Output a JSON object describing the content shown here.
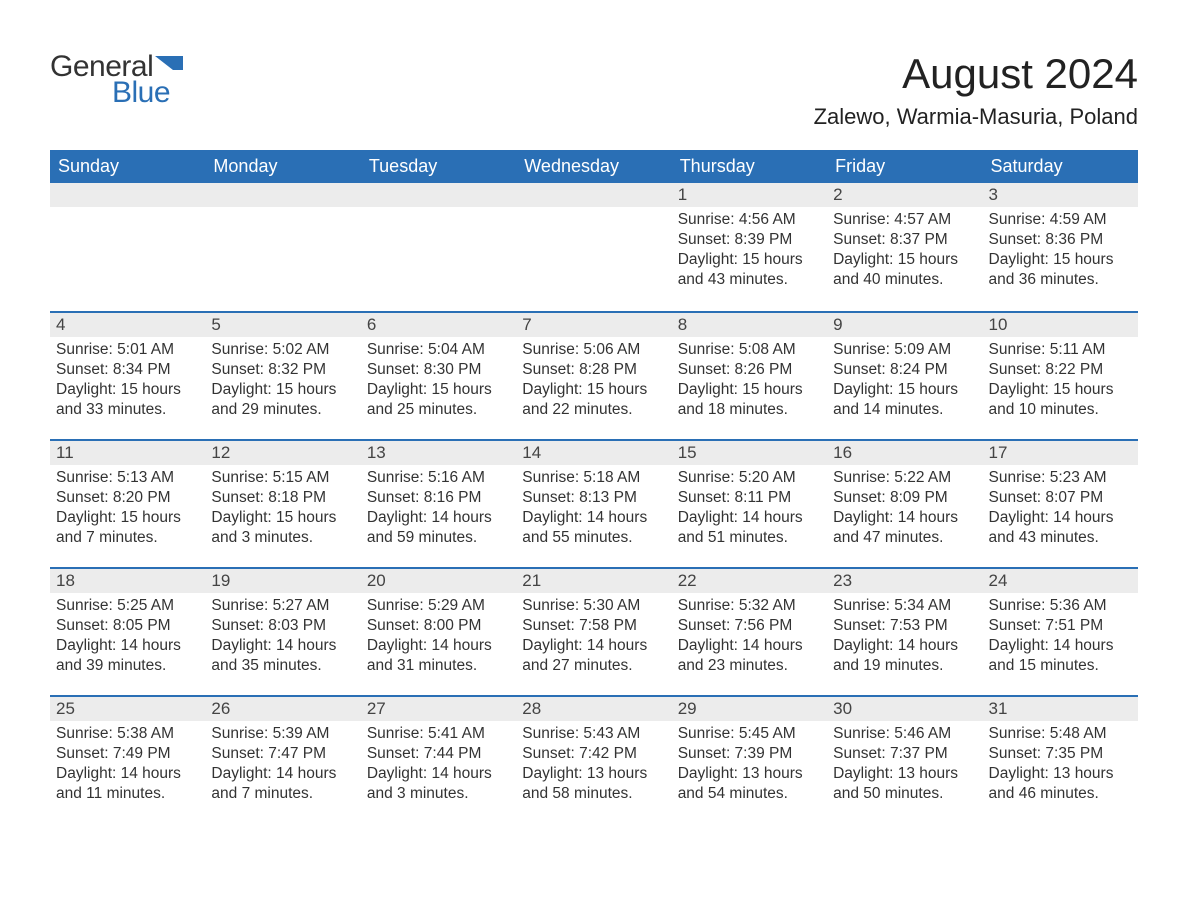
{
  "logo": {
    "text_general": "General",
    "text_blue": "Blue",
    "flag_color": "#2a6fb5"
  },
  "header": {
    "month_title": "August 2024",
    "location": "Zalewo, Warmia-Masuria, Poland"
  },
  "colors": {
    "header_bg": "#2a6fb5",
    "header_text": "#ffffff",
    "daynum_bg": "#ececec",
    "row_border": "#2a6fb5",
    "body_text": "#333333",
    "background": "#ffffff"
  },
  "fonts": {
    "title_size_pt": 32,
    "location_size_pt": 17,
    "header_cell_size_pt": 14,
    "daynum_size_pt": 13,
    "body_size_pt": 12
  },
  "calendar": {
    "day_names": [
      "Sunday",
      "Monday",
      "Tuesday",
      "Wednesday",
      "Thursday",
      "Friday",
      "Saturday"
    ],
    "weeks": [
      [
        null,
        null,
        null,
        null,
        {
          "n": "1",
          "sunrise": "Sunrise: 4:56 AM",
          "sunset": "Sunset: 8:39 PM",
          "daylight": "Daylight: 15 hours and 43 minutes."
        },
        {
          "n": "2",
          "sunrise": "Sunrise: 4:57 AM",
          "sunset": "Sunset: 8:37 PM",
          "daylight": "Daylight: 15 hours and 40 minutes."
        },
        {
          "n": "3",
          "sunrise": "Sunrise: 4:59 AM",
          "sunset": "Sunset: 8:36 PM",
          "daylight": "Daylight: 15 hours and 36 minutes."
        }
      ],
      [
        {
          "n": "4",
          "sunrise": "Sunrise: 5:01 AM",
          "sunset": "Sunset: 8:34 PM",
          "daylight": "Daylight: 15 hours and 33 minutes."
        },
        {
          "n": "5",
          "sunrise": "Sunrise: 5:02 AM",
          "sunset": "Sunset: 8:32 PM",
          "daylight": "Daylight: 15 hours and 29 minutes."
        },
        {
          "n": "6",
          "sunrise": "Sunrise: 5:04 AM",
          "sunset": "Sunset: 8:30 PM",
          "daylight": "Daylight: 15 hours and 25 minutes."
        },
        {
          "n": "7",
          "sunrise": "Sunrise: 5:06 AM",
          "sunset": "Sunset: 8:28 PM",
          "daylight": "Daylight: 15 hours and 22 minutes."
        },
        {
          "n": "8",
          "sunrise": "Sunrise: 5:08 AM",
          "sunset": "Sunset: 8:26 PM",
          "daylight": "Daylight: 15 hours and 18 minutes."
        },
        {
          "n": "9",
          "sunrise": "Sunrise: 5:09 AM",
          "sunset": "Sunset: 8:24 PM",
          "daylight": "Daylight: 15 hours and 14 minutes."
        },
        {
          "n": "10",
          "sunrise": "Sunrise: 5:11 AM",
          "sunset": "Sunset: 8:22 PM",
          "daylight": "Daylight: 15 hours and 10 minutes."
        }
      ],
      [
        {
          "n": "11",
          "sunrise": "Sunrise: 5:13 AM",
          "sunset": "Sunset: 8:20 PM",
          "daylight": "Daylight: 15 hours and 7 minutes."
        },
        {
          "n": "12",
          "sunrise": "Sunrise: 5:15 AM",
          "sunset": "Sunset: 8:18 PM",
          "daylight": "Daylight: 15 hours and 3 minutes."
        },
        {
          "n": "13",
          "sunrise": "Sunrise: 5:16 AM",
          "sunset": "Sunset: 8:16 PM",
          "daylight": "Daylight: 14 hours and 59 minutes."
        },
        {
          "n": "14",
          "sunrise": "Sunrise: 5:18 AM",
          "sunset": "Sunset: 8:13 PM",
          "daylight": "Daylight: 14 hours and 55 minutes."
        },
        {
          "n": "15",
          "sunrise": "Sunrise: 5:20 AM",
          "sunset": "Sunset: 8:11 PM",
          "daylight": "Daylight: 14 hours and 51 minutes."
        },
        {
          "n": "16",
          "sunrise": "Sunrise: 5:22 AM",
          "sunset": "Sunset: 8:09 PM",
          "daylight": "Daylight: 14 hours and 47 minutes."
        },
        {
          "n": "17",
          "sunrise": "Sunrise: 5:23 AM",
          "sunset": "Sunset: 8:07 PM",
          "daylight": "Daylight: 14 hours and 43 minutes."
        }
      ],
      [
        {
          "n": "18",
          "sunrise": "Sunrise: 5:25 AM",
          "sunset": "Sunset: 8:05 PM",
          "daylight": "Daylight: 14 hours and 39 minutes."
        },
        {
          "n": "19",
          "sunrise": "Sunrise: 5:27 AM",
          "sunset": "Sunset: 8:03 PM",
          "daylight": "Daylight: 14 hours and 35 minutes."
        },
        {
          "n": "20",
          "sunrise": "Sunrise: 5:29 AM",
          "sunset": "Sunset: 8:00 PM",
          "daylight": "Daylight: 14 hours and 31 minutes."
        },
        {
          "n": "21",
          "sunrise": "Sunrise: 5:30 AM",
          "sunset": "Sunset: 7:58 PM",
          "daylight": "Daylight: 14 hours and 27 minutes."
        },
        {
          "n": "22",
          "sunrise": "Sunrise: 5:32 AM",
          "sunset": "Sunset: 7:56 PM",
          "daylight": "Daylight: 14 hours and 23 minutes."
        },
        {
          "n": "23",
          "sunrise": "Sunrise: 5:34 AM",
          "sunset": "Sunset: 7:53 PM",
          "daylight": "Daylight: 14 hours and 19 minutes."
        },
        {
          "n": "24",
          "sunrise": "Sunrise: 5:36 AM",
          "sunset": "Sunset: 7:51 PM",
          "daylight": "Daylight: 14 hours and 15 minutes."
        }
      ],
      [
        {
          "n": "25",
          "sunrise": "Sunrise: 5:38 AM",
          "sunset": "Sunset: 7:49 PM",
          "daylight": "Daylight: 14 hours and 11 minutes."
        },
        {
          "n": "26",
          "sunrise": "Sunrise: 5:39 AM",
          "sunset": "Sunset: 7:47 PM",
          "daylight": "Daylight: 14 hours and 7 minutes."
        },
        {
          "n": "27",
          "sunrise": "Sunrise: 5:41 AM",
          "sunset": "Sunset: 7:44 PM",
          "daylight": "Daylight: 14 hours and 3 minutes."
        },
        {
          "n": "28",
          "sunrise": "Sunrise: 5:43 AM",
          "sunset": "Sunset: 7:42 PM",
          "daylight": "Daylight: 13 hours and 58 minutes."
        },
        {
          "n": "29",
          "sunrise": "Sunrise: 5:45 AM",
          "sunset": "Sunset: 7:39 PM",
          "daylight": "Daylight: 13 hours and 54 minutes."
        },
        {
          "n": "30",
          "sunrise": "Sunrise: 5:46 AM",
          "sunset": "Sunset: 7:37 PM",
          "daylight": "Daylight: 13 hours and 50 minutes."
        },
        {
          "n": "31",
          "sunrise": "Sunrise: 5:48 AM",
          "sunset": "Sunset: 7:35 PM",
          "daylight": "Daylight: 13 hours and 46 minutes."
        }
      ]
    ]
  }
}
